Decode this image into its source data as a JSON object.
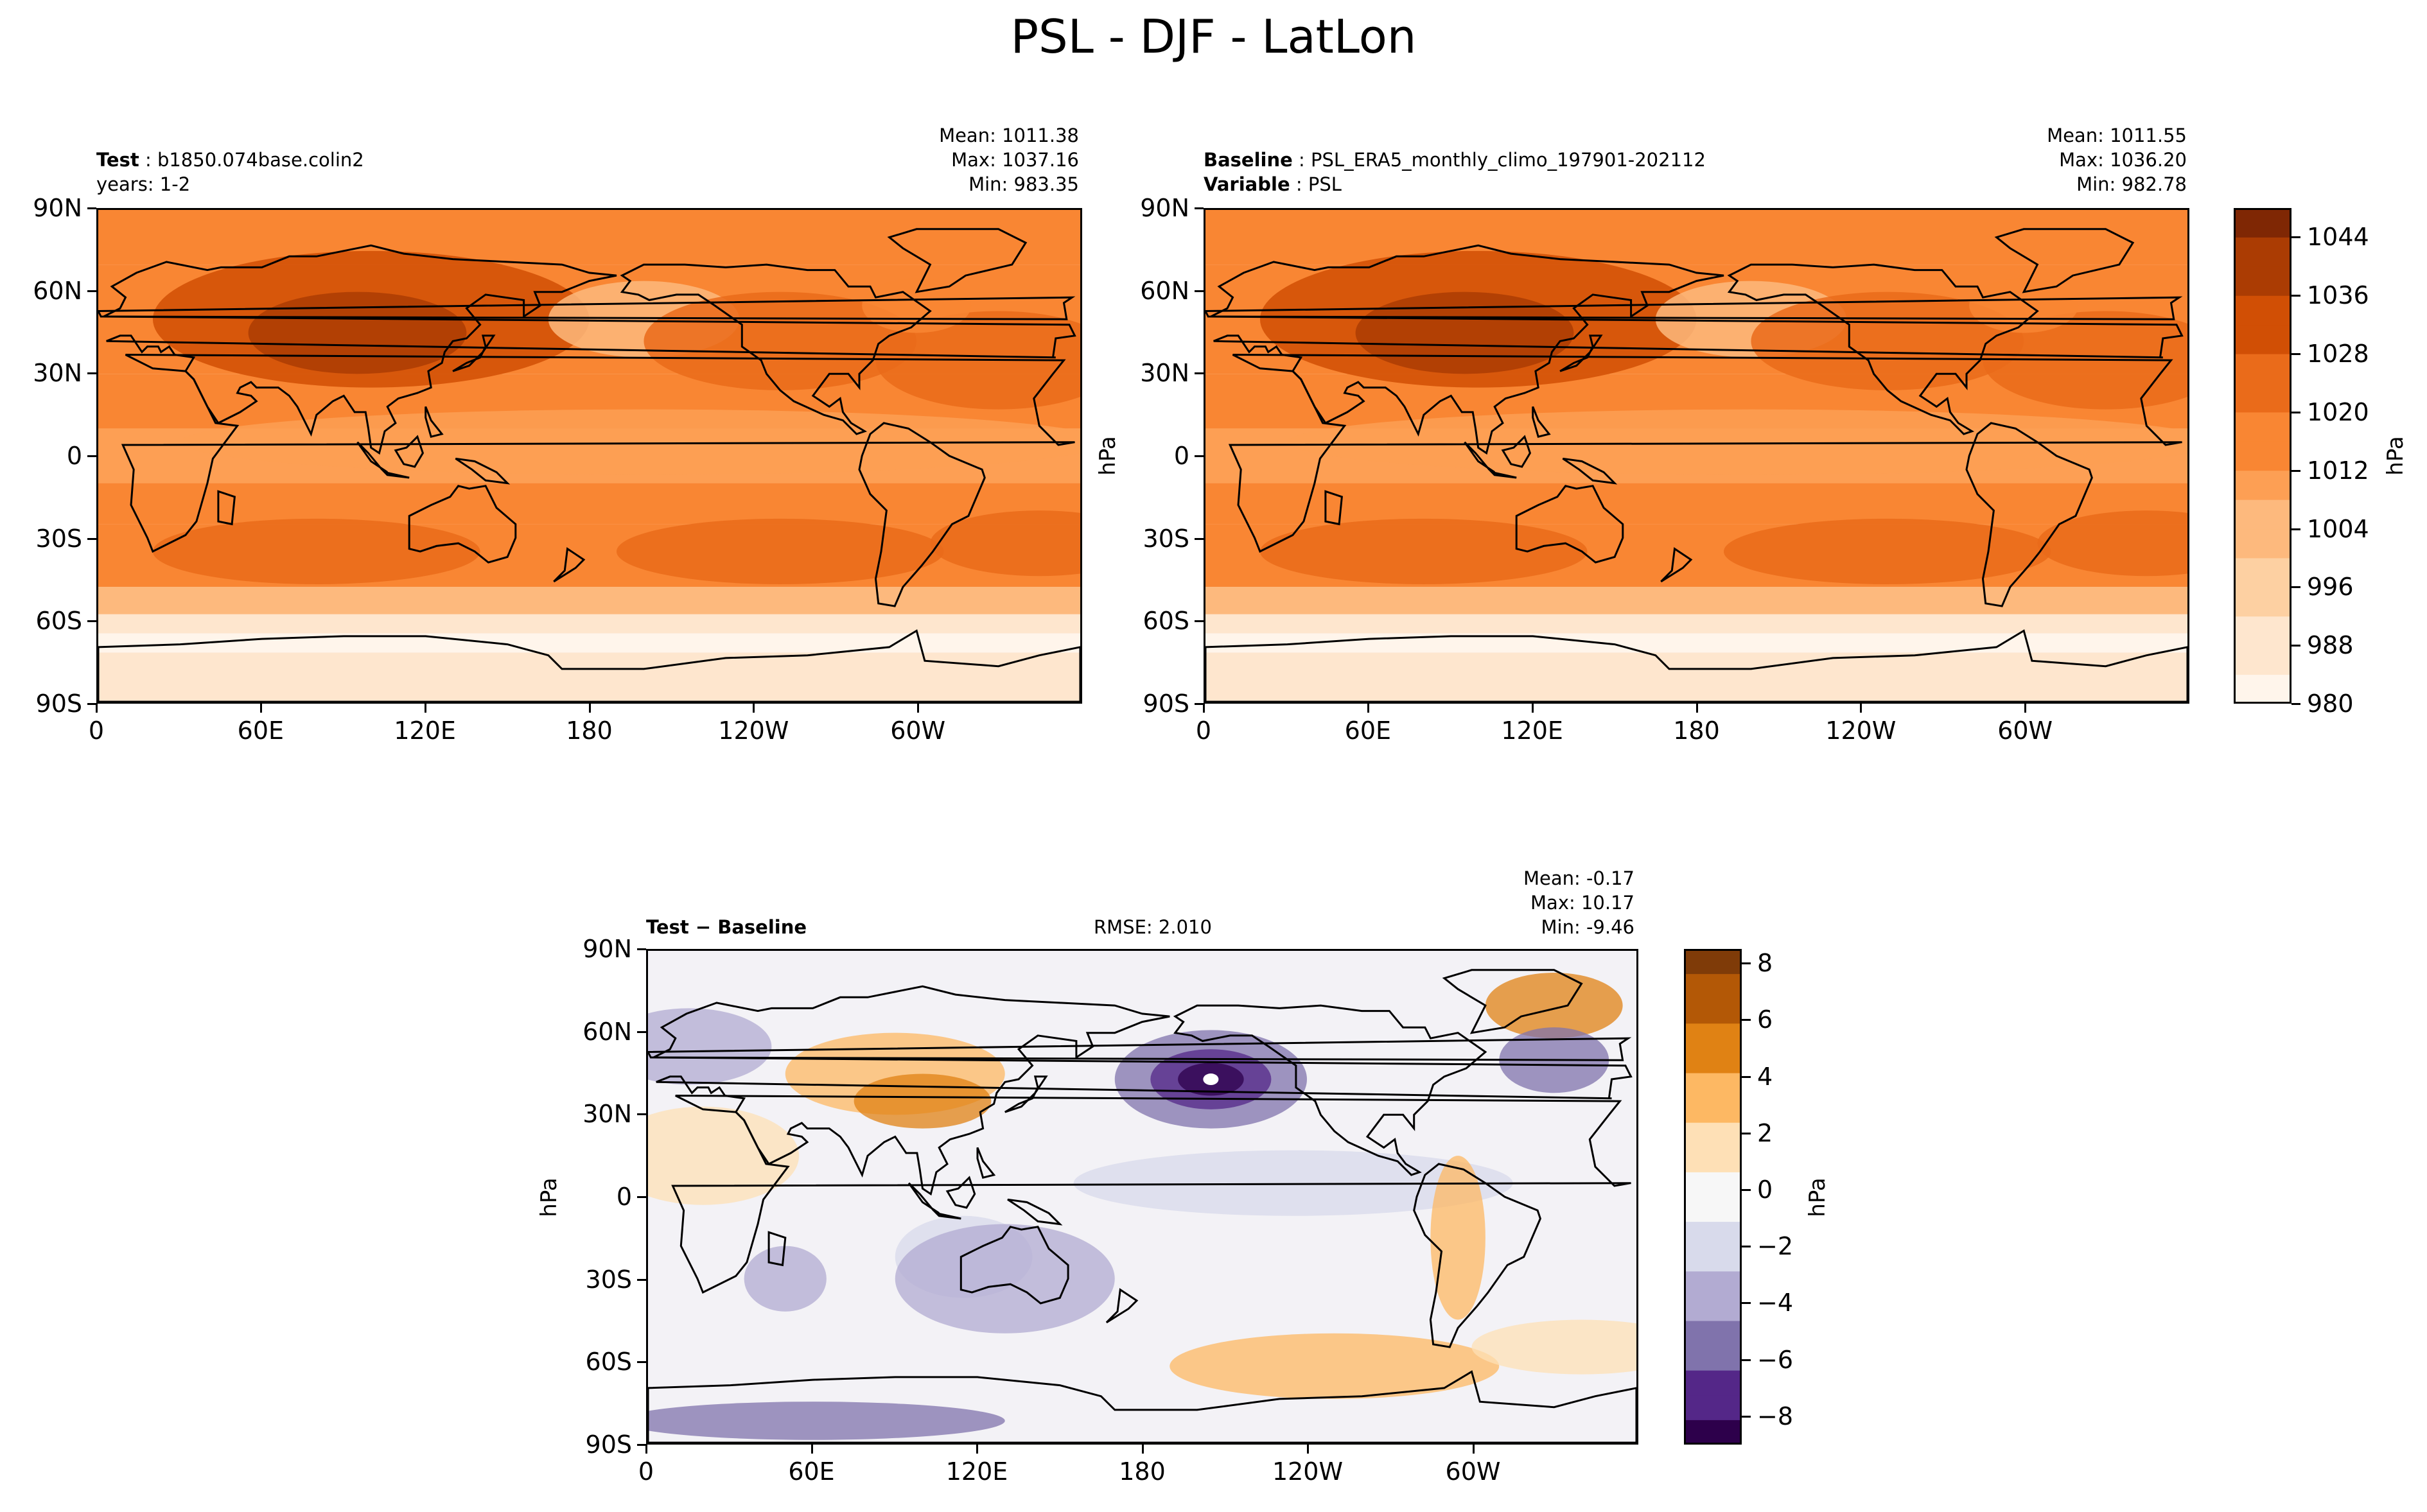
{
  "page": {
    "suptitle": "PSL - DJF - LatLon"
  },
  "colors": {
    "oranges_cmap": [
      "#fff5eb",
      "#fee6ce",
      "#fdd0a2",
      "#fdb97d",
      "#fd9f54",
      "#f98633",
      "#ea6b1a",
      "#d14f05",
      "#ab3c03",
      "#7f2704"
    ],
    "puor_cmap": [
      "#2d004b",
      "#542788",
      "#8073ac",
      "#b2abd2",
      "#d8daeb",
      "#f7f7f7",
      "#fee0b6",
      "#fdb863",
      "#e08214",
      "#b35806",
      "#7f3b08"
    ],
    "coast": "#000000"
  },
  "panels": {
    "test": {
      "label_bold": "Test",
      "label_text": "b1850.074base.colin2",
      "line2": "years: 1-2",
      "stats": {
        "mean": "Mean: 1011.38",
        "max": "Max: 1037.16",
        "min": "Min: 983.35"
      }
    },
    "baseline": {
      "label_bold": "Baseline",
      "label_text": "PSL_ERA5_monthly_climo_197901-202112",
      "line2_bold": "Variable",
      "line2_text": "PSL",
      "stats": {
        "mean": "Mean: 1011.55",
        "max": "Max: 1036.20",
        "min": "Min: 982.78"
      },
      "ylabel": "hPa"
    },
    "diff": {
      "label": "Test − Baseline",
      "rmse": "RMSE: 2.010",
      "stats": {
        "mean": "Mean: -0.17",
        "max": "Max: 10.17",
        "min": "Min: -9.46"
      },
      "ylabel": "hPa"
    }
  },
  "axes": {
    "lat_ticks": [
      "90N",
      "60N",
      "30N",
      "0",
      "30S",
      "60S",
      "90S"
    ],
    "lon_ticks": [
      "0",
      "60E",
      "120E",
      "180",
      "120W",
      "60W"
    ]
  },
  "colorbars": {
    "top": {
      "label": "hPa",
      "ticks": [
        "980",
        "988",
        "996",
        "1004",
        "1012",
        "1020",
        "1028",
        "1036",
        "1044"
      ],
      "range": [
        980,
        1048
      ]
    },
    "diff": {
      "label": "hPa",
      "ticks": [
        "−8",
        "−6",
        "−4",
        "−2",
        "0",
        "2",
        "4",
        "6",
        "8"
      ],
      "range": [
        -9,
        8.5
      ]
    }
  },
  "chart_data": [
    {
      "type": "heatmap",
      "title": "Test",
      "xlabel": "",
      "ylabel": "",
      "x_ticks": [
        "0",
        "60E",
        "120E",
        "180",
        "120W",
        "60W"
      ],
      "y_ticks": [
        "90N",
        "60N",
        "30N",
        "0",
        "30S",
        "60S",
        "90S"
      ],
      "xlim": [
        0,
        360
      ],
      "ylim": [
        -90,
        90
      ],
      "value_range": [
        983.35,
        1037.16
      ],
      "mean": 1011.38
    },
    {
      "type": "heatmap",
      "title": "Baseline",
      "xlabel": "",
      "ylabel": "hPa",
      "x_ticks": [
        "0",
        "60E",
        "120E",
        "180",
        "120W",
        "60W"
      ],
      "y_ticks": [
        "90N",
        "60N",
        "30N",
        "0",
        "30S",
        "60S",
        "90S"
      ],
      "xlim": [
        0,
        360
      ],
      "ylim": [
        -90,
        90
      ],
      "value_range": [
        982.78,
        1036.2
      ],
      "mean": 1011.55
    },
    {
      "type": "heatmap",
      "title": "Test − Baseline",
      "xlabel": "",
      "ylabel": "hPa",
      "x_ticks": [
        "0",
        "60E",
        "120E",
        "180",
        "120W",
        "60W"
      ],
      "y_ticks": [
        "90N",
        "60N",
        "30N",
        "0",
        "30S",
        "60S",
        "90S"
      ],
      "xlim": [
        0,
        360
      ],
      "ylim": [
        -90,
        90
      ],
      "value_range": [
        -9.46,
        10.17
      ],
      "mean": -0.17,
      "rmse": 2.01
    }
  ]
}
